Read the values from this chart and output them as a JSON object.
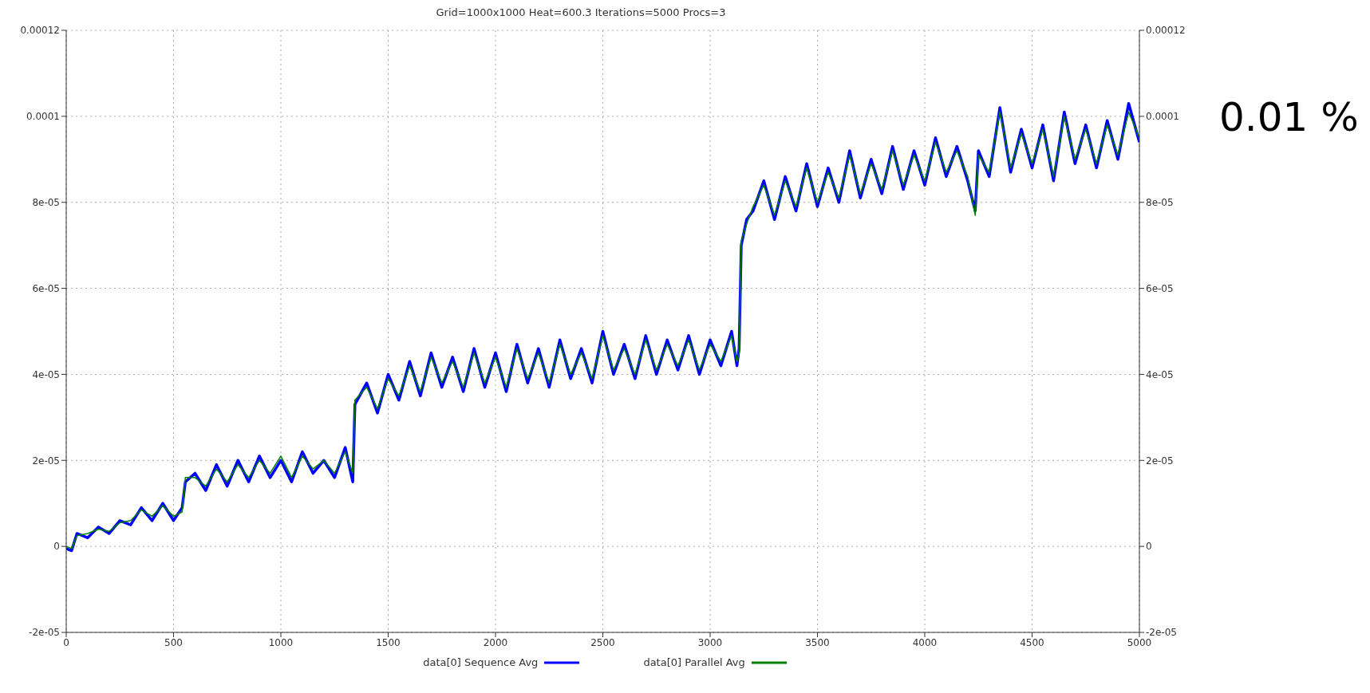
{
  "chart_data": {
    "type": "line",
    "title": "Grid=1000x1000 Heat=600.3 Iterations=5000 Procs=3",
    "x": [
      0,
      25,
      50,
      100,
      150,
      200,
      250,
      300,
      350,
      400,
      450,
      500,
      540,
      555,
      600,
      650,
      700,
      750,
      800,
      850,
      900,
      950,
      1000,
      1050,
      1100,
      1150,
      1200,
      1250,
      1300,
      1335,
      1345,
      1400,
      1450,
      1500,
      1550,
      1600,
      1650,
      1700,
      1750,
      1800,
      1850,
      1900,
      1950,
      2000,
      2050,
      2100,
      2150,
      2200,
      2250,
      2300,
      2350,
      2400,
      2450,
      2500,
      2550,
      2600,
      2650,
      2700,
      2750,
      2800,
      2850,
      2900,
      2950,
      3000,
      3050,
      3100,
      3125,
      3135,
      3145,
      3170,
      3200,
      3250,
      3300,
      3350,
      3400,
      3450,
      3500,
      3550,
      3600,
      3650,
      3700,
      3750,
      3800,
      3850,
      3900,
      3950,
      4000,
      4050,
      4100,
      4150,
      4200,
      4235,
      4250,
      4300,
      4350,
      4400,
      4450,
      4500,
      4550,
      4600,
      4650,
      4700,
      4750,
      4800,
      4850,
      4900,
      4950,
      5000
    ],
    "series": [
      {
        "name": "data[0] Sequence Avg",
        "color": "#0000ff",
        "values": [
          -5e-07,
          -1e-06,
          3e-06,
          2e-06,
          4.5e-06,
          3e-06,
          6e-06,
          5e-06,
          9e-06,
          6e-06,
          1e-05,
          6e-06,
          9e-06,
          1.5e-05,
          1.7e-05,
          1.3e-05,
          1.9e-05,
          1.4e-05,
          2e-05,
          1.5e-05,
          2.1e-05,
          1.6e-05,
          2e-05,
          1.5e-05,
          2.2e-05,
          1.7e-05,
          2e-05,
          1.6e-05,
          2.3e-05,
          1.5e-05,
          3.3e-05,
          3.8e-05,
          3.1e-05,
          4e-05,
          3.4e-05,
          4.3e-05,
          3.5e-05,
          4.5e-05,
          3.7e-05,
          4.4e-05,
          3.6e-05,
          4.6e-05,
          3.7e-05,
          4.5e-05,
          3.6e-05,
          4.7e-05,
          3.8e-05,
          4.6e-05,
          3.7e-05,
          4.8e-05,
          3.9e-05,
          4.6e-05,
          3.8e-05,
          5e-05,
          4e-05,
          4.7e-05,
          3.9e-05,
          4.9e-05,
          4e-05,
          4.8e-05,
          4.1e-05,
          4.9e-05,
          4e-05,
          4.8e-05,
          4.2e-05,
          5e-05,
          4.2e-05,
          4.6e-05,
          7e-05,
          7.6e-05,
          7.8e-05,
          8.5e-05,
          7.6e-05,
          8.6e-05,
          7.8e-05,
          8.9e-05,
          7.9e-05,
          8.8e-05,
          8e-05,
          9.2e-05,
          8.1e-05,
          9e-05,
          8.2e-05,
          9.3e-05,
          8.3e-05,
          9.2e-05,
          8.4e-05,
          9.5e-05,
          8.6e-05,
          9.3e-05,
          8.5e-05,
          7.8e-05,
          9.2e-05,
          8.6e-05,
          0.000102,
          8.7e-05,
          9.7e-05,
          8.8e-05,
          9.8e-05,
          8.5e-05,
          0.000101,
          8.9e-05,
          9.8e-05,
          8.8e-05,
          9.9e-05,
          9e-05,
          0.000103,
          9.4e-05
        ]
      },
      {
        "name": "data[0] Parallel Avg",
        "color": "#008000",
        "values": [
          0.0,
          -5e-07,
          2.5e-06,
          3e-06,
          4e-06,
          3.5e-06,
          5.5e-06,
          6e-06,
          8.5e-06,
          7e-06,
          9.5e-06,
          7e-06,
          8e-06,
          1.6e-05,
          1.6e-05,
          1.4e-05,
          1.8e-05,
          1.5e-05,
          1.9e-05,
          1.6e-05,
          2e-05,
          1.7e-05,
          2.1e-05,
          1.6e-05,
          2.1e-05,
          1.8e-05,
          2e-05,
          1.7e-05,
          2.2e-05,
          1.7e-05,
          3.4e-05,
          3.7e-05,
          3.2e-05,
          3.9e-05,
          3.5e-05,
          4.2e-05,
          3.6e-05,
          4.4e-05,
          3.8e-05,
          4.3e-05,
          3.7e-05,
          4.5e-05,
          3.8e-05,
          4.4e-05,
          3.7e-05,
          4.6e-05,
          3.9e-05,
          4.5e-05,
          3.8e-05,
          4.7e-05,
          4e-05,
          4.5e-05,
          3.9e-05,
          4.9e-05,
          4.1e-05,
          4.6e-05,
          4e-05,
          4.8e-05,
          4.1e-05,
          4.7e-05,
          4.2e-05,
          4.8e-05,
          4.1e-05,
          4.7e-05,
          4.3e-05,
          4.9e-05,
          4.3e-05,
          4.5e-05,
          7.1e-05,
          7.5e-05,
          7.9e-05,
          8.4e-05,
          7.7e-05,
          8.5e-05,
          7.9e-05,
          8.8e-05,
          8e-05,
          8.7e-05,
          8.1e-05,
          9.1e-05,
          8.2e-05,
          8.9e-05,
          8.3e-05,
          9.2e-05,
          8.4e-05,
          9.1e-05,
          8.5e-05,
          9.4e-05,
          8.7e-05,
          9.2e-05,
          8.6e-05,
          7.7e-05,
          9.1e-05,
          8.7e-05,
          0.000101,
          8.8e-05,
          9.6e-05,
          8.9e-05,
          9.7e-05,
          8.6e-05,
          0.0001,
          9e-05,
          9.7e-05,
          8.9e-05,
          9.8e-05,
          9.1e-05,
          0.000101,
          9.5e-05
        ]
      }
    ],
    "xlim": [
      0,
      5000
    ],
    "xticks": [
      0,
      500,
      1000,
      1500,
      2000,
      2500,
      3000,
      3500,
      4000,
      4500,
      5000
    ],
    "ylim": [
      -2e-05,
      0.00012
    ],
    "yticks": [
      {
        "value": -2e-05,
        "label": "-2e-05"
      },
      0,
      {
        "value": 2e-05,
        "label": "2e-05"
      },
      {
        "value": 4e-05,
        "label": "4e-05"
      },
      {
        "value": 6e-05,
        "label": "6e-05"
      },
      {
        "value": 8e-05,
        "label": "8e-05"
      },
      0.0001,
      0.00012
    ],
    "y2lim": [
      -2e-05,
      0.00012
    ],
    "y2ticks": [
      {
        "value": -2e-05,
        "label": "-2e-05"
      },
      0,
      {
        "value": 2e-05,
        "label": "2e-05"
      },
      {
        "value": 4e-05,
        "label": "4e-05"
      },
      {
        "value": 6e-05,
        "label": "6e-05"
      },
      {
        "value": 8e-05,
        "label": "8e-05"
      },
      0.0001,
      0.00012
    ],
    "grid": true,
    "legend": "bottom",
    "marker": "none",
    "line_style": "solid",
    "annotations": [
      "0.01 %"
    ]
  }
}
